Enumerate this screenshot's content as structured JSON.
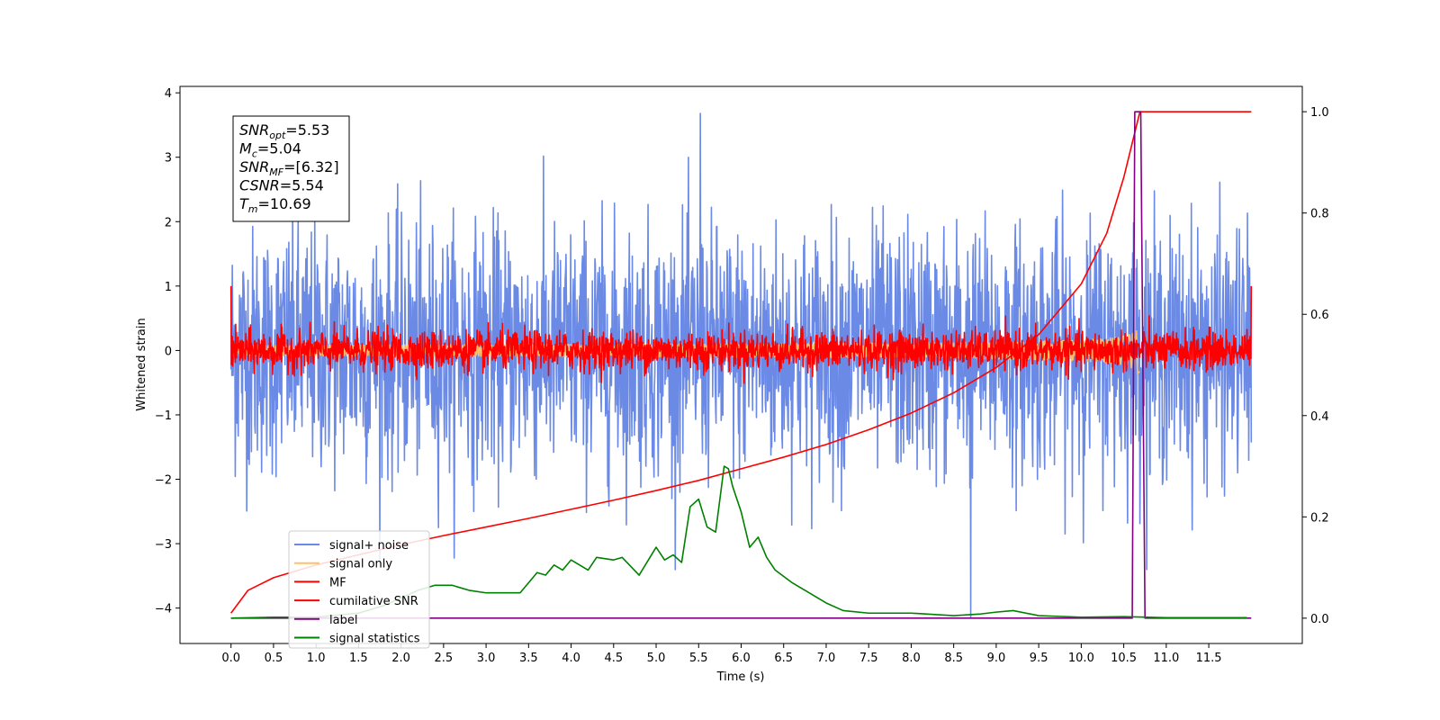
{
  "chart_data": {
    "type": "line",
    "xlabel": "Time (s)",
    "ylabel": "Whitened strain",
    "xlim": [
      -0.6,
      12.6
    ],
    "ylim": [
      -4.55,
      4.1
    ],
    "y2lim": [
      -0.05,
      1.05
    ],
    "x_ticks": [
      0.0,
      0.5,
      1.0,
      1.5,
      2.0,
      2.5,
      3.0,
      3.5,
      4.0,
      4.5,
      5.0,
      5.5,
      6.0,
      6.5,
      7.0,
      7.5,
      8.0,
      8.5,
      9.0,
      9.5,
      10.0,
      10.5,
      11.0,
      11.5
    ],
    "x_tick_labels": [
      "0.0",
      "0.5",
      "1.0",
      "1.5",
      "2.0",
      "2.5",
      "3.0",
      "3.5",
      "4.0",
      "4.5",
      "5.0",
      "5.5",
      "6.0",
      "6.5",
      "7.0",
      "7.5",
      "8.0",
      "8.5",
      "9.0",
      "9.5",
      "10.0",
      "10.5",
      "11.0",
      "11.5"
    ],
    "y_ticks": [
      4,
      3,
      2,
      1,
      0,
      -1,
      -2,
      -3,
      -4
    ],
    "y_tick_labels": [
      "4",
      "3",
      "2",
      "1",
      "0",
      "−1",
      "−2",
      "−3",
      "−4"
    ],
    "y2_ticks": [
      1.0,
      0.8,
      0.6,
      0.4,
      0.2,
      0.0
    ],
    "y2_tick_labels": [
      "1.0",
      "0.8",
      "0.6",
      "0.4",
      "0.2",
      "0.0"
    ],
    "legend_position": "lower-left",
    "grid": false,
    "stats_box": [
      {
        "sym": "SNR",
        "sub": "opt",
        "text": "=5.53"
      },
      {
        "sym": "M",
        "sub": "c",
        "text": "=5.04"
      },
      {
        "sym": "SNR",
        "sub": "MF",
        "text": "=[6.32]"
      },
      {
        "sym": "CSNR",
        "sub": "",
        "text": "=5.54"
      },
      {
        "sym": "T",
        "sub": "m",
        "text": "=10.69"
      }
    ],
    "series": [
      {
        "name": "signal+ noise",
        "color": "#6a8ae6",
        "axis": "left",
        "kind": "noise",
        "x_range": [
          0.0,
          12.0
        ],
        "std": 0.95,
        "peak_max": 3.68,
        "peak_min": -4.15
      },
      {
        "name": "signal only",
        "color": "#ffbf66",
        "axis": "left",
        "kind": "chirp",
        "x_range": [
          0.0,
          10.69
        ],
        "amp_max": 0.4
      },
      {
        "name": "MF",
        "color": "#ff0000",
        "axis": "left",
        "kind": "noise",
        "x_range": [
          0.0,
          12.0
        ],
        "std": 0.15,
        "edge_value": 1.0
      },
      {
        "name": "cumilative SNR",
        "color": "#ff0000",
        "axis": "right",
        "x": [
          0.0,
          0.2,
          0.5,
          1.0,
          1.5,
          2.0,
          2.5,
          3.0,
          3.5,
          4.0,
          4.5,
          5.0,
          5.5,
          6.0,
          6.5,
          7.0,
          7.5,
          8.0,
          8.5,
          9.0,
          9.5,
          10.0,
          10.3,
          10.5,
          10.69,
          10.7,
          12.0
        ],
        "y": [
          0.01,
          0.055,
          0.08,
          0.105,
          0.125,
          0.145,
          0.163,
          0.18,
          0.197,
          0.215,
          0.233,
          0.252,
          0.272,
          0.295,
          0.318,
          0.343,
          0.372,
          0.405,
          0.445,
          0.495,
          0.56,
          0.66,
          0.76,
          0.87,
          1.0,
          1.0,
          1.0
        ]
      },
      {
        "name": "label",
        "color": "#800080",
        "axis": "right",
        "x": [
          0.0,
          10.6,
          10.63,
          10.7,
          10.75,
          12.0
        ],
        "y": [
          0.0,
          0.0,
          1.0,
          1.0,
          0.0,
          0.0
        ]
      },
      {
        "name": "signal statistics",
        "color": "#008000",
        "axis": "right",
        "x": [
          0.0,
          0.5,
          1.0,
          1.5,
          1.8,
          2.0,
          2.2,
          2.4,
          2.6,
          2.8,
          3.0,
          3.2,
          3.4,
          3.6,
          3.7,
          3.8,
          3.9,
          4.0,
          4.2,
          4.3,
          4.5,
          4.6,
          4.8,
          5.0,
          5.1,
          5.2,
          5.3,
          5.4,
          5.5,
          5.6,
          5.7,
          5.8,
          5.85,
          5.9,
          6.0,
          6.1,
          6.2,
          6.3,
          6.4,
          6.6,
          6.8,
          7.0,
          7.2,
          7.5,
          8.0,
          8.5,
          8.8,
          9.0,
          9.2,
          9.5,
          10.0,
          10.5,
          11.0,
          11.5,
          11.95
        ],
        "y": [
          0.0,
          0.002,
          0.002,
          0.01,
          0.025,
          0.04,
          0.055,
          0.065,
          0.065,
          0.055,
          0.05,
          0.05,
          0.05,
          0.09,
          0.085,
          0.105,
          0.095,
          0.115,
          0.095,
          0.12,
          0.115,
          0.12,
          0.085,
          0.14,
          0.115,
          0.125,
          0.11,
          0.22,
          0.235,
          0.18,
          0.17,
          0.3,
          0.295,
          0.26,
          0.21,
          0.14,
          0.16,
          0.12,
          0.095,
          0.07,
          0.05,
          0.03,
          0.015,
          0.01,
          0.01,
          0.005,
          0.008,
          0.012,
          0.015,
          0.005,
          0.002,
          0.003,
          0.001,
          0.001,
          0.001
        ]
      }
    ]
  }
}
